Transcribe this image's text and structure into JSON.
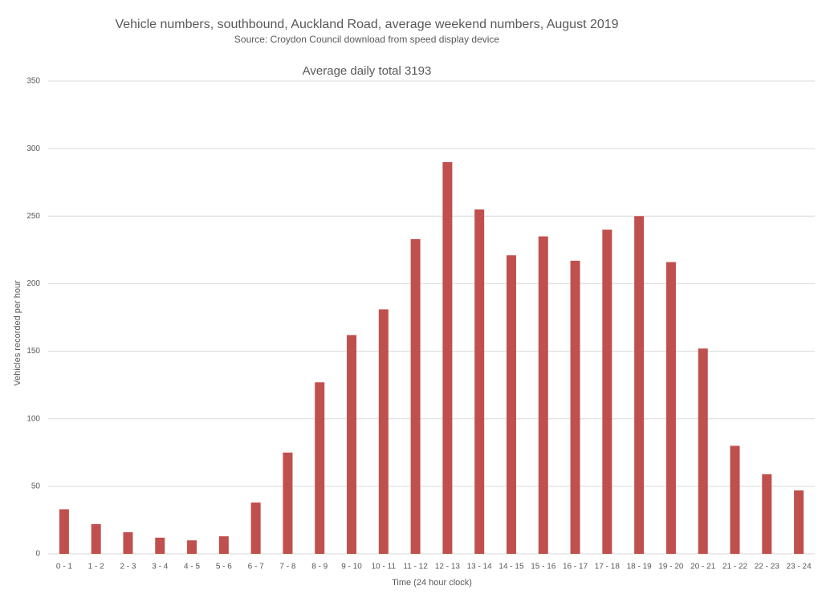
{
  "chart_data": {
    "type": "bar",
    "title": "Vehicle numbers, southbound, Auckland Road, average weekend numbers, August 2019",
    "subtitle": "Source: Croydon Council download from speed display device",
    "annotation": "Average daily total 3193",
    "x_label": "Time (24 hour clock)",
    "y_label": "Vehicles recorded per hour",
    "categories": [
      "0 - 1",
      "1 - 2",
      "2 - 3",
      "3 - 4",
      "4 - 5",
      "5 - 6",
      "6 - 7",
      "7 - 8",
      "8 - 9",
      "9 - 10",
      "10 - 11",
      "11 - 12",
      "12 - 13",
      "13 - 14",
      "14 - 15",
      "15 - 16",
      "16 - 17",
      "17 - 18",
      "18 - 19",
      "19 - 20",
      "20 - 21",
      "21 - 22",
      "22 - 23",
      "23 - 24"
    ],
    "values": [
      33,
      22,
      16,
      12,
      10,
      13,
      38,
      75,
      127,
      162,
      181,
      233,
      290,
      255,
      221,
      235,
      217,
      240,
      250,
      216,
      152,
      80,
      59,
      47
    ],
    "color": "#c0504d",
    "ylim": [
      0,
      350
    ],
    "yticks": [
      0,
      50,
      100,
      150,
      200,
      250,
      300,
      350
    ],
    "grid": true
  }
}
